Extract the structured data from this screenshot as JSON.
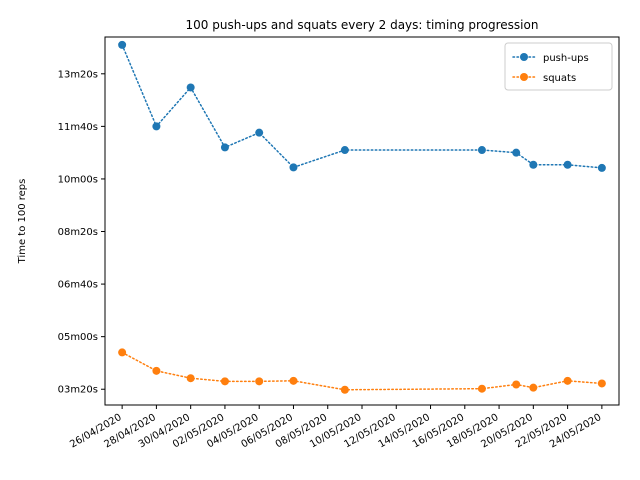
{
  "chart_data": {
    "type": "line",
    "title": "100 push-ups and squats every 2 days: timing progression",
    "xlabel": "",
    "ylabel": "Time to 100 reps",
    "x_ticks": [
      "26/04/2020",
      "28/04/2020",
      "30/04/2020",
      "02/05/2020",
      "04/05/2020",
      "06/05/2020",
      "08/05/2020",
      "10/05/2020",
      "12/05/2020",
      "14/05/2020",
      "16/05/2020",
      "18/05/2020",
      "20/05/2020",
      "22/05/2020",
      "24/05/2020"
    ],
    "y_ticks": [
      {
        "label": "03m20s",
        "seconds": 200
      },
      {
        "label": "05m00s",
        "seconds": 300
      },
      {
        "label": "06m40s",
        "seconds": 400
      },
      {
        "label": "08m20s",
        "seconds": 500
      },
      {
        "label": "10m00s",
        "seconds": 600
      },
      {
        "label": "11m40s",
        "seconds": 700
      },
      {
        "label": "13m20s",
        "seconds": 800
      }
    ],
    "xlim": [
      "2020-04-25",
      "2020-05-25"
    ],
    "ylim": [
      170,
      870
    ],
    "legend_position": "top-right",
    "grid": false,
    "series": [
      {
        "name": "push-ups",
        "color": "#1f77b4",
        "line_style": "dotted",
        "points": [
          {
            "date": "2020-04-26",
            "seconds": 855
          },
          {
            "date": "2020-04-28",
            "seconds": 700
          },
          {
            "date": "2020-04-30",
            "seconds": 774
          },
          {
            "date": "2020-05-02",
            "seconds": 660
          },
          {
            "date": "2020-05-04",
            "seconds": 688
          },
          {
            "date": "2020-05-06",
            "seconds": 622
          },
          {
            "date": "2020-05-09",
            "seconds": 655
          },
          {
            "date": "2020-05-17",
            "seconds": 655
          },
          {
            "date": "2020-05-19",
            "seconds": 650
          },
          {
            "date": "2020-05-20",
            "seconds": 627
          },
          {
            "date": "2020-05-22",
            "seconds": 627
          },
          {
            "date": "2020-05-24",
            "seconds": 621
          }
        ]
      },
      {
        "name": "squats",
        "color": "#ff7f0e",
        "line_style": "dotted",
        "points": [
          {
            "date": "2020-04-26",
            "seconds": 270
          },
          {
            "date": "2020-04-28",
            "seconds": 235
          },
          {
            "date": "2020-04-30",
            "seconds": 221
          },
          {
            "date": "2020-05-02",
            "seconds": 215
          },
          {
            "date": "2020-05-04",
            "seconds": 215
          },
          {
            "date": "2020-05-06",
            "seconds": 216
          },
          {
            "date": "2020-05-09",
            "seconds": 199
          },
          {
            "date": "2020-05-17",
            "seconds": 201
          },
          {
            "date": "2020-05-19",
            "seconds": 209
          },
          {
            "date": "2020-05-20",
            "seconds": 203
          },
          {
            "date": "2020-05-22",
            "seconds": 216
          },
          {
            "date": "2020-05-24",
            "seconds": 211
          }
        ]
      }
    ]
  }
}
